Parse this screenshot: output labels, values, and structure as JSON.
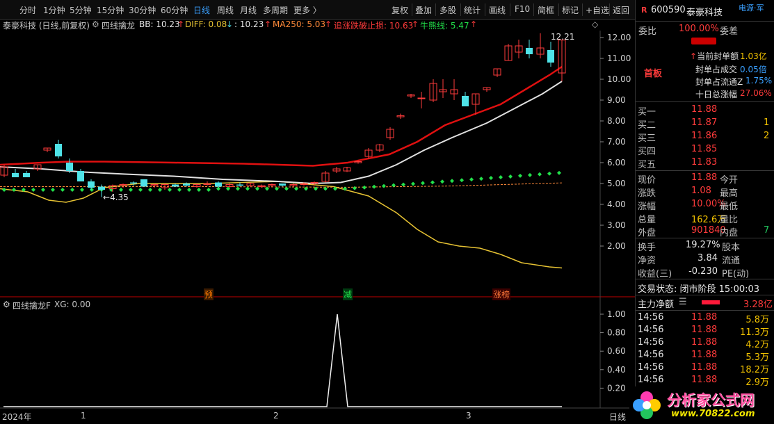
{
  "toolbar": {
    "periods": [
      "分时",
      "1分钟",
      "5分钟",
      "15分钟",
      "30分钟",
      "60分钟",
      "日线",
      "周线",
      "月线",
      "多周期",
      "更多 〉"
    ],
    "active_period": "日线",
    "tools": [
      "复权",
      "叠加",
      "多股",
      "统计",
      "画线",
      "F10",
      "简框",
      "标记",
      "+自选",
      "返回"
    ]
  },
  "legend": {
    "stock_title": "泰豪科技 (日线,前复权)",
    "indicator": "四线擒龙",
    "bb": "BB: 10.23",
    "diff": "DIFF: 0.08",
    "unnamed": ": 10.23",
    "ma250": "MA250: 5.03",
    "stop": "追涨跌破止损: 10.63",
    "bull": "牛熊线: 5.47"
  },
  "main_axis": [
    "12.00",
    "11.00",
    "10.00",
    "9.00",
    "8.00",
    "7.00",
    "6.00",
    "5.00",
    "4.00",
    "3.00",
    "2.00"
  ],
  "annotations": {
    "high": "12.21",
    "low": "4.35"
  },
  "markers": [
    "预",
    "减",
    "涨榜"
  ],
  "sub_legend": {
    "name": "四线擒龙F",
    "xg": "XG: 0.00"
  },
  "sub_axis": [
    "1.00",
    "0.80",
    "0.60",
    "0.40",
    "0.20"
  ],
  "date_axis": [
    "2024年",
    "1",
    "2",
    "3"
  ],
  "period_label": "日线",
  "colors": {
    "up": "#ff3b3b",
    "down": "#4fe3e8",
    "bb_line": "#e0e0e0",
    "ma_red": "#e01010",
    "yellow": "#e6c233",
    "green_dots": "#22e04a",
    "ma250": "#ff8a3a"
  },
  "panel": {
    "code": "600590",
    "name": "泰豪科技",
    "tag": "电源·军",
    "weibi_label": "委比",
    "weibi": "100.00%",
    "weicha_label": "委差",
    "shou_ban": "首板",
    "seal": [
      {
        "label": "当前封单额",
        "value": "1.03亿"
      },
      {
        "label": "封单占成交",
        "value": "0.05倍"
      },
      {
        "label": "封单占流通Z",
        "value": "1.75%"
      },
      {
        "label": "十日总涨幅",
        "value": "27.06%"
      }
    ],
    "bids": [
      {
        "label": "买一",
        "price": "11.88",
        "vol": ""
      },
      {
        "label": "买二",
        "price": "11.87",
        "vol": "1"
      },
      {
        "label": "买三",
        "price": "11.86",
        "vol": "2"
      },
      {
        "label": "买四",
        "price": "11.85",
        "vol": ""
      },
      {
        "label": "买五",
        "price": "11.83",
        "vol": ""
      }
    ],
    "quote": [
      {
        "l1": "现价",
        "v1": "11.88",
        "l2": "今开",
        "v2": ""
      },
      {
        "l1": "涨跌",
        "v1": "1.08",
        "l2": "最高",
        "v2": ""
      },
      {
        "l1": "涨幅",
        "v1": "10.00%",
        "l2": "最低",
        "v2": ""
      },
      {
        "l1": "总量",
        "v1": "162.6万",
        "l2": "量比",
        "v2": ""
      },
      {
        "l1": "外盘",
        "v1": "901840",
        "l2": "内盘",
        "v2": "7"
      }
    ],
    "fund": [
      {
        "l1": "换手",
        "v1": "19.27%",
        "l2": "股本"
      },
      {
        "l1": "净资",
        "v1": "3.84",
        "l2": "流通"
      },
      {
        "l1": "收益(三)",
        "v1": "-0.230",
        "l2": "PE(动)"
      }
    ],
    "trade_status": "交易状态: 闭市阶段 15:00:03",
    "main_flow_label": "主力净额",
    "main_flow_value": "3.28亿",
    "ticks": [
      {
        "t": "14:56",
        "p": "11.88",
        "v": "5.8万"
      },
      {
        "t": "14:56",
        "p": "11.88",
        "v": "11.3万"
      },
      {
        "t": "14:56",
        "p": "11.88",
        "v": "4.2万"
      },
      {
        "t": "14:56",
        "p": "11.88",
        "v": "5.3万"
      },
      {
        "t": "14:56",
        "p": "11.88",
        "v": "18.2万"
      },
      {
        "t": "14:56",
        "p": "11.88",
        "v": "2.9万"
      }
    ]
  },
  "watermark": {
    "text": "分析家公式网",
    "url": "www.70822.com"
  }
}
